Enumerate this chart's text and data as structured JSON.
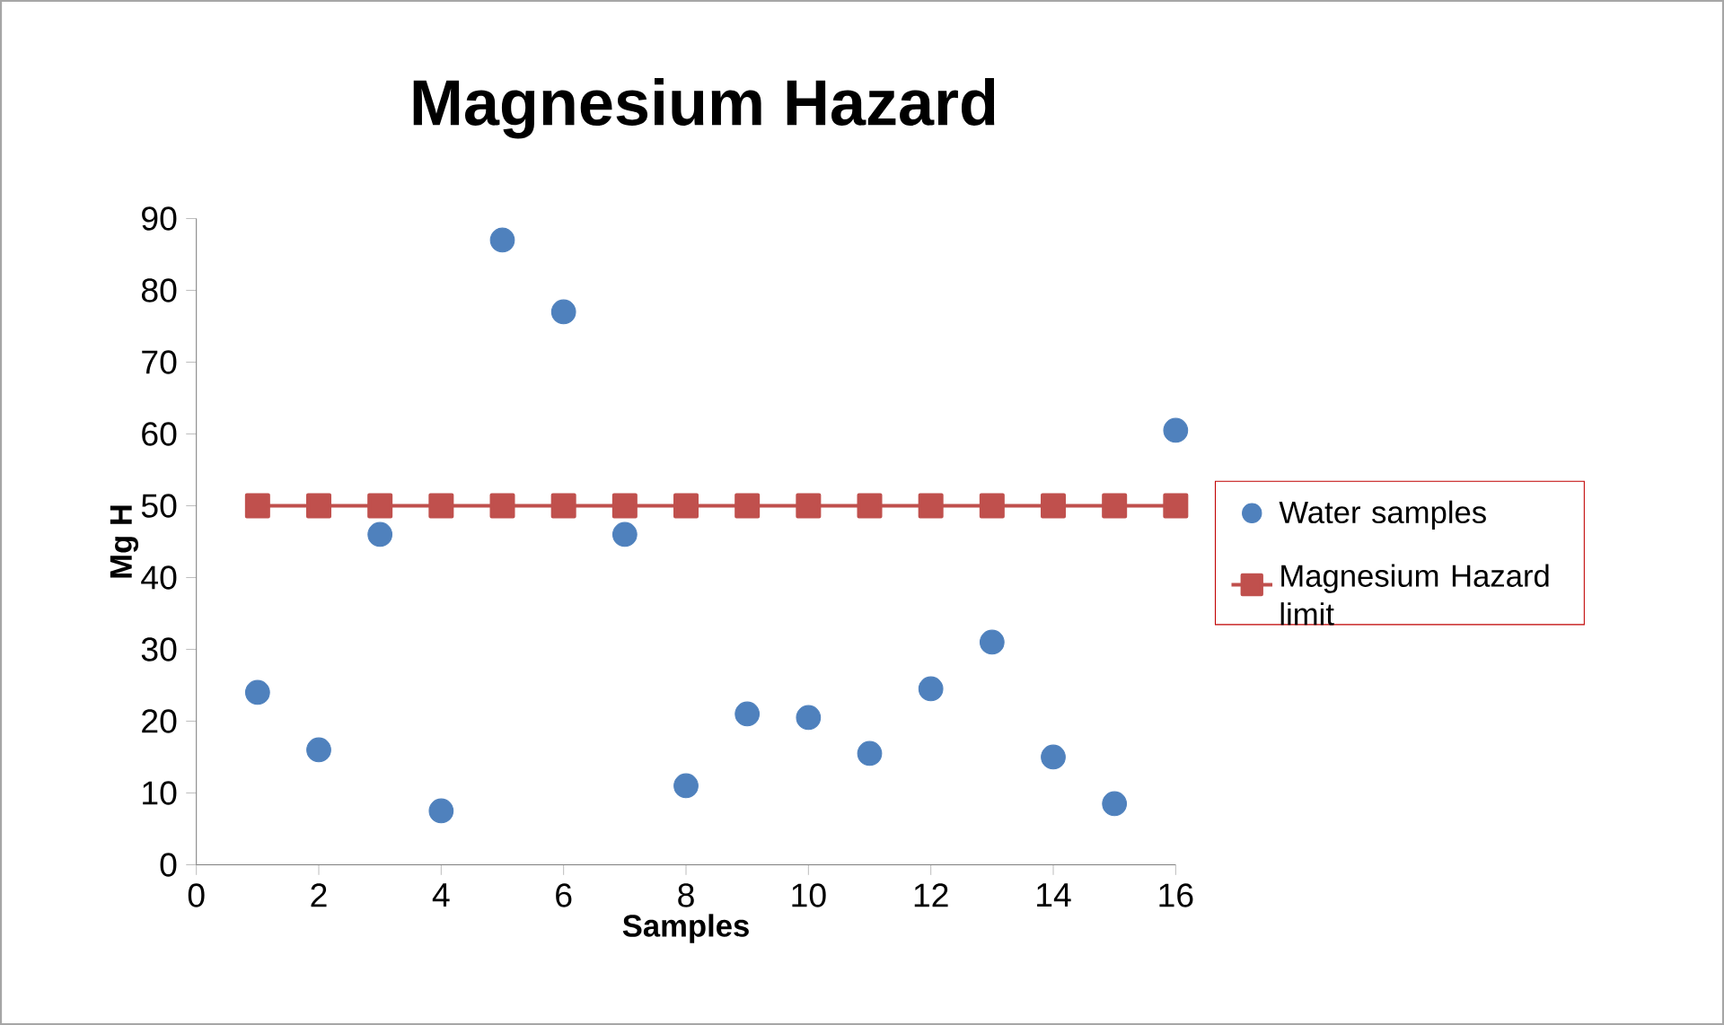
{
  "chart_data": {
    "type": "scatter",
    "title": "Magnesium Hazard",
    "xlabel": "Samples",
    "ylabel": "Mg H",
    "x": [
      1,
      2,
      3,
      4,
      5,
      6,
      7,
      8,
      9,
      10,
      11,
      12,
      13,
      14,
      15,
      16
    ],
    "series": [
      {
        "name": "Water samples",
        "color": "#4f81bd",
        "marker": "circle",
        "values": [
          24,
          16,
          46,
          7.5,
          87,
          77,
          46,
          11,
          21,
          20.5,
          15.5,
          24.5,
          31,
          15,
          8.5,
          60.5
        ]
      },
      {
        "name": "Magnesium Hazard limit",
        "type": "line",
        "color": "#c0504d",
        "marker": "square",
        "line_style": "solid",
        "values": [
          50,
          50,
          50,
          50,
          50,
          50,
          50,
          50,
          50,
          50,
          50,
          50,
          50,
          50,
          50,
          50
        ]
      }
    ],
    "xlim": [
      0,
      16
    ],
    "xticks": [
      0,
      2,
      4,
      6,
      8,
      10,
      12,
      14,
      16
    ],
    "ylim": [
      0,
      90
    ],
    "yticks": [
      0,
      10,
      20,
      30,
      40,
      50,
      60,
      70,
      80,
      90
    ],
    "legend": "right"
  }
}
